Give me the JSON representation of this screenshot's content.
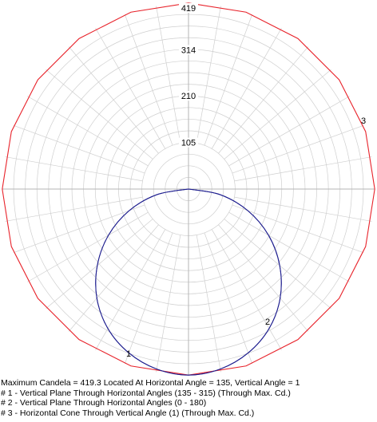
{
  "chart_data": {
    "type": "polar",
    "title": "",
    "radial_max": 419,
    "radial_ticks": [
      105,
      210,
      314,
      419
    ],
    "angular_gridline_step_deg": 10,
    "grid": true,
    "colors": {
      "grid": "#cfcfcf",
      "axes": "#b5b5b5",
      "cone": "#e8232b",
      "vertical": "#1f1f8f"
    },
    "series": [
      {
        "name": "1",
        "label": "1",
        "description_ref": "legend.line1",
        "angles_deg": [
          0,
          10,
          20,
          30,
          40,
          50,
          60,
          70,
          80,
          90
        ],
        "values": [
          419.3,
          412,
          393,
          363,
          321,
          268,
          208,
          142,
          72,
          0
        ]
      },
      {
        "name": "2",
        "label": "2",
        "angles_deg": [
          0,
          10,
          20,
          30,
          40,
          50,
          60,
          70,
          80,
          90
        ],
        "values": [
          419.3,
          412,
          393,
          363,
          321,
          268,
          208,
          142,
          72,
          0
        ]
      },
      {
        "name": "3",
        "label": "3",
        "type": "horizontal-cone",
        "polygon_sides": 20,
        "value": 419.3
      }
    ]
  },
  "legend": {
    "line0": "Maximum Candela = 419.3   Located At Horizontal Angle = 135, Vertical Angle = 1",
    "line1": "# 1 - Vertical Plane Through Horizontal Angles (135 - 315) (Through Max. Cd.)",
    "line2": "# 2 - Vertical Plane Through Horizontal Angles (0 - 180)",
    "line3": "# 3 - Horizontal Cone Through Vertical Angle (1) (Through Max. Cd.)"
  }
}
